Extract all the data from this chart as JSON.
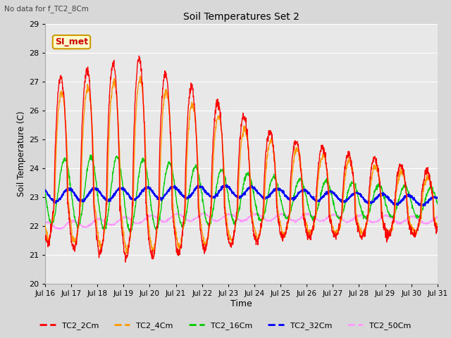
{
  "title": "Soil Temperatures Set 2",
  "subtitle": "No data for f_TC2_8Cm",
  "xlabel": "Time",
  "ylabel": "Soil Temperature (C)",
  "ylim": [
    20.0,
    29.0
  ],
  "yticks": [
    20.0,
    21.0,
    22.0,
    23.0,
    24.0,
    25.0,
    26.0,
    27.0,
    28.0,
    29.0
  ],
  "xtick_labels": [
    "Jul 16",
    "Jul 17",
    "Jul 18",
    "Jul 19",
    "Jul 20",
    "Jul 21",
    "Jul 22",
    "Jul 23",
    "Jul 24",
    "Jul 25",
    "Jul 26",
    "Jul 27",
    "Jul 28",
    "Jul 29",
    "Jul 30",
    "Jul 31"
  ],
  "legend_labels": [
    "TC2_2Cm",
    "TC2_4Cm",
    "TC2_16Cm",
    "TC2_32Cm",
    "TC2_50Cm"
  ],
  "line_colors": [
    "#ff0000",
    "#ff9900",
    "#00cc00",
    "#0000ff",
    "#ff99ff"
  ],
  "line_widths": [
    1.0,
    1.0,
    1.0,
    1.5,
    1.0
  ],
  "fig_bg_color": "#d8d8d8",
  "plot_bg_color": "#e8e8e8",
  "annotation_text": "SI_met",
  "annotation_color": "#cc0000",
  "annotation_bg": "#ffffcc",
  "annotation_border": "#cc9900"
}
